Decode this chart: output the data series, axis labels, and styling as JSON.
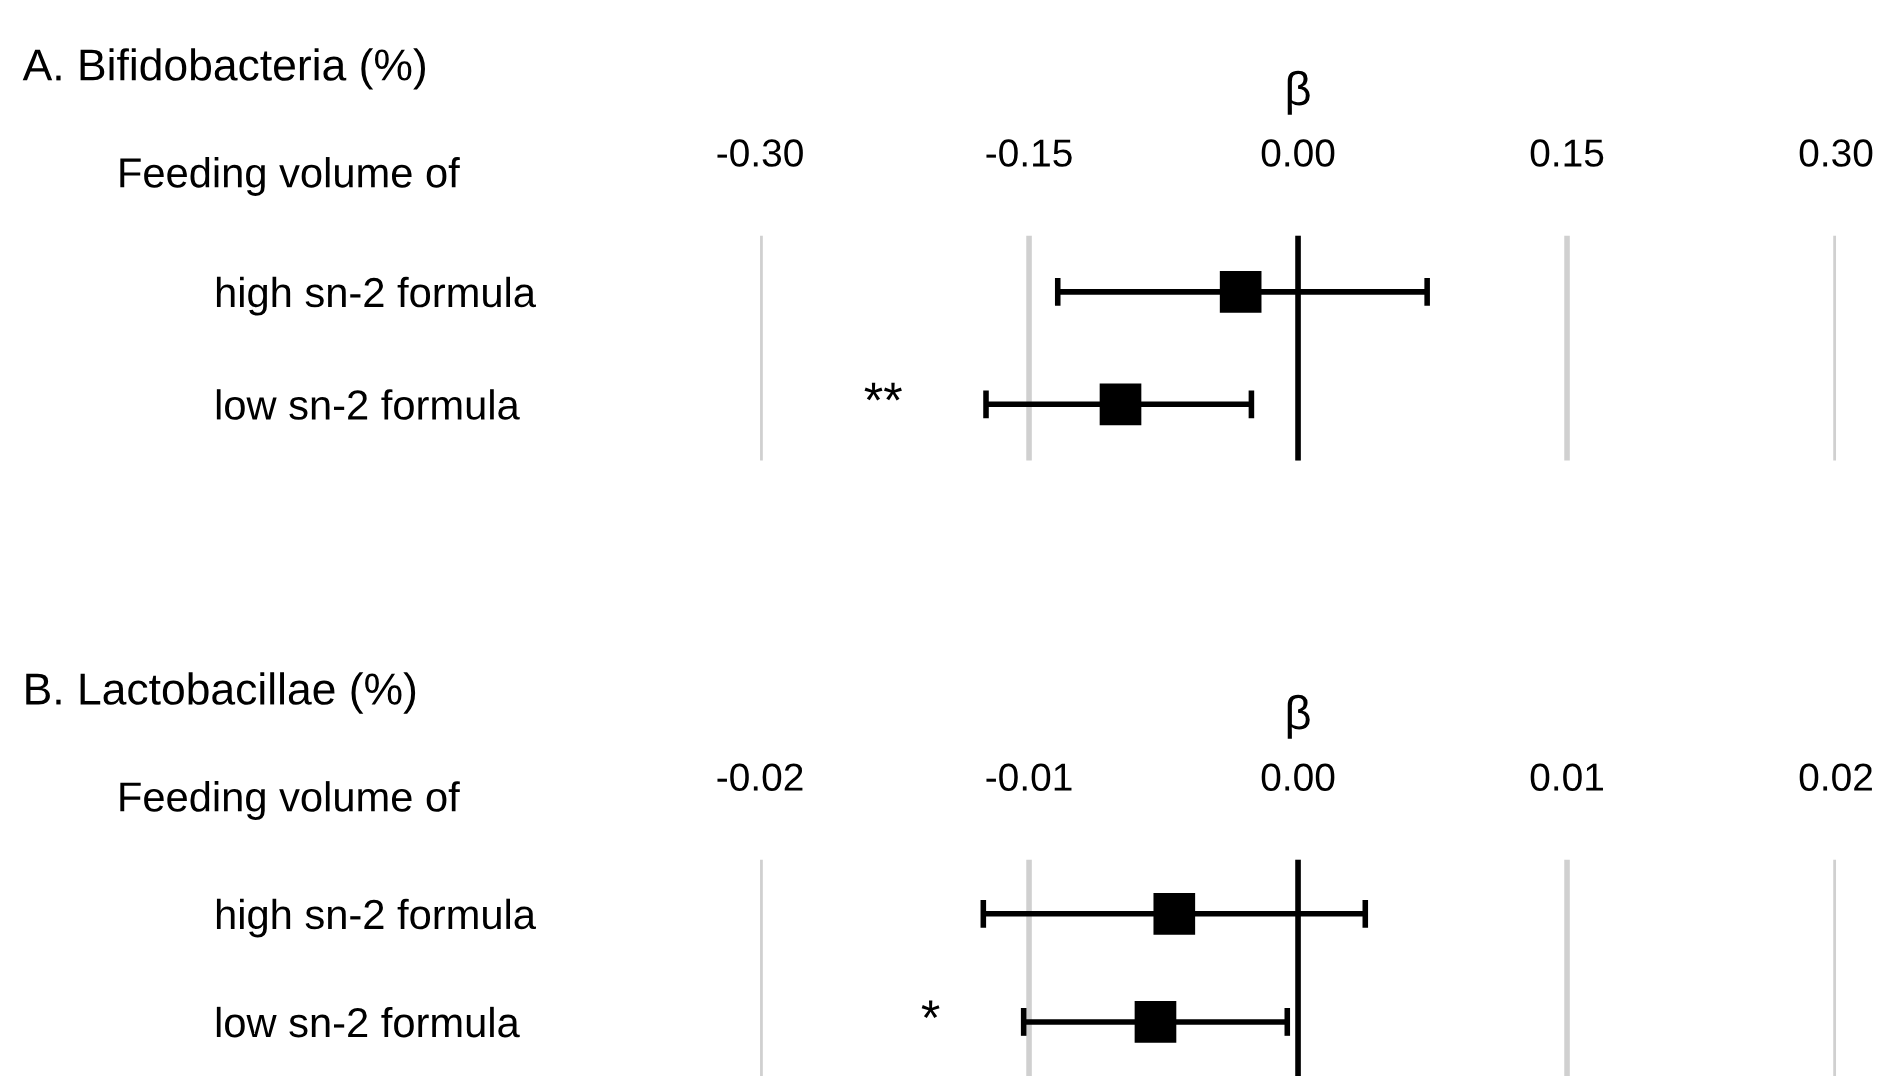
{
  "chart_data": [
    {
      "type": "scatter",
      "orientation": "horizontal",
      "title": "A. Bifidobacteria (%)",
      "xlabel": "β",
      "ylabel": "Feeding volume of",
      "categories": [
        "high sn-2 formula",
        "low sn-2 formula"
      ],
      "values": [
        -0.032,
        -0.099
      ],
      "errors": [
        [
          -0.134,
          0.072
        ],
        [
          -0.174,
          -0.026
        ]
      ],
      "color": "#000000",
      "marker": "square",
      "xlim": [
        -0.3,
        0.3
      ],
      "xticks": [
        {
          "value": -0.3,
          "label": "-0.30"
        },
        {
          "value": -0.15,
          "label": "-0.15"
        },
        {
          "value": 0,
          "label": "0.00"
        },
        {
          "value": 0.15,
          "label": "0.15"
        },
        {
          "value": 0.3,
          "label": "0.30"
        }
      ],
      "grid": "x",
      "ref_lines": [
        {
          "axis": "x",
          "value": 0,
          "color": "#000000"
        }
      ],
      "annotations": [
        "**"
      ]
    },
    {
      "type": "scatter",
      "orientation": "horizontal",
      "title": "B. Lactobacillae (%)",
      "xlabel": "β",
      "ylabel": "Feeding volume of",
      "categories": [
        "high sn-2 formula",
        "low sn-2 formula"
      ],
      "values": [
        -0.0046,
        -0.0053
      ],
      "errors": [
        [
          -0.0117,
          0.0025
        ],
        [
          -0.0102,
          -0.0004
        ]
      ],
      "color": "#000000",
      "marker": "square",
      "xlim": [
        -0.02,
        0.02
      ],
      "xticks": [
        {
          "value": -0.02,
          "label": "-0.02"
        },
        {
          "value": -0.01,
          "label": "-0.01"
        },
        {
          "value": 0,
          "label": "0.00"
        },
        {
          "value": 0.01,
          "label": "0.01"
        },
        {
          "value": 0.02,
          "label": "0.02"
        }
      ],
      "grid": "x",
      "ref_lines": [
        {
          "axis": "x",
          "value": 0,
          "color": "#000000"
        }
      ],
      "annotations": [
        "*"
      ]
    }
  ]
}
